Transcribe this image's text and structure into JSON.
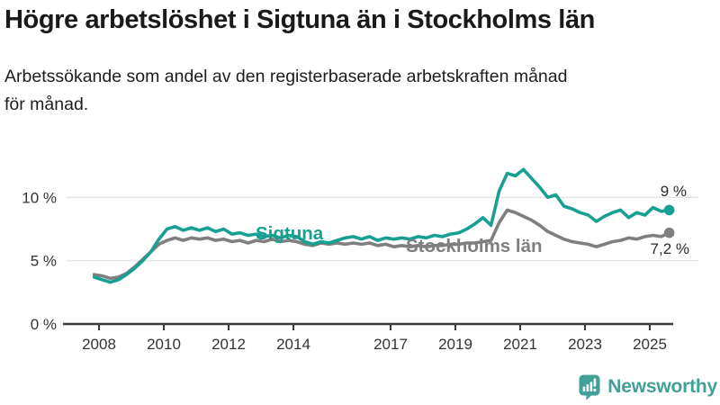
{
  "header": {
    "title": "Högre arbetslöshet i Sigtuna än i Stockholms län",
    "subtitle": "Arbetssökande som andel av den registerbaserade arbetskraften månad\nför månad."
  },
  "chart_data": {
    "type": "line",
    "title": "Högre arbetslöshet i Sigtuna än i Stockholms län",
    "subtitle": "Arbetssökande som andel av den registerbaserade arbetskraften månad för månad.",
    "unit": "%",
    "grid": "horizontal",
    "legend": "inline-labels",
    "x_start": 2007.85,
    "x_step": 0.25,
    "x_ticks": [
      2008,
      2010,
      2012,
      2014,
      2017,
      2019,
      2021,
      2023,
      2025
    ],
    "y_ticks": [
      {
        "value": 0,
        "label": "0 %"
      },
      {
        "value": 5,
        "label": "5 %"
      },
      {
        "value": 10,
        "label": "10 %"
      }
    ],
    "ylim": [
      0,
      13.5
    ],
    "series": [
      {
        "name": "Sigtuna",
        "color": "#17a092",
        "end_label": "9 %",
        "end_value": 9.0,
        "values": [
          3.7,
          3.5,
          3.3,
          3.5,
          3.9,
          4.4,
          5.0,
          5.7,
          6.7,
          7.5,
          7.7,
          7.4,
          7.6,
          7.4,
          7.6,
          7.3,
          7.5,
          7.1,
          7.2,
          7.0,
          7.1,
          6.9,
          7.0,
          6.8,
          7.0,
          6.9,
          6.5,
          6.3,
          6.5,
          6.4,
          6.6,
          6.8,
          6.9,
          6.7,
          6.9,
          6.6,
          6.8,
          6.7,
          6.8,
          6.7,
          6.9,
          6.8,
          7.0,
          6.9,
          7.1,
          7.2,
          7.5,
          7.9,
          8.4,
          7.8,
          10.5,
          11.9,
          11.7,
          12.2,
          11.5,
          10.8,
          10.0,
          10.2,
          9.3,
          9.1,
          8.8,
          8.6,
          8.1,
          8.5,
          8.8,
          9.0,
          8.4,
          8.8,
          8.6,
          9.2,
          8.9,
          9.0
        ]
      },
      {
        "name": "Stockholms län",
        "color": "#7f7f7f",
        "end_label": "7,2 %",
        "end_value": 7.2,
        "values": [
          3.9,
          3.8,
          3.6,
          3.7,
          4.0,
          4.5,
          5.1,
          5.7,
          6.3,
          6.6,
          6.8,
          6.6,
          6.8,
          6.7,
          6.8,
          6.6,
          6.7,
          6.5,
          6.6,
          6.4,
          6.6,
          6.5,
          6.7,
          6.5,
          6.6,
          6.5,
          6.3,
          6.2,
          6.4,
          6.3,
          6.4,
          6.3,
          6.4,
          6.3,
          6.4,
          6.2,
          6.3,
          6.1,
          6.2,
          6.1,
          6.2,
          6.1,
          6.2,
          6.2,
          6.3,
          6.3,
          6.4,
          6.4,
          6.5,
          6.6,
          8.0,
          9.0,
          8.8,
          8.5,
          8.2,
          7.8,
          7.3,
          7.0,
          6.7,
          6.5,
          6.4,
          6.3,
          6.1,
          6.3,
          6.5,
          6.6,
          6.8,
          6.7,
          6.9,
          7.0,
          6.9,
          7.2
        ]
      }
    ],
    "colors": {
      "grid": "#e4e4e4",
      "axis": "#3b3b3b",
      "tick_text": "#333333"
    }
  },
  "footer": {
    "brand": "Newsworthy",
    "brand_color": "#42a096",
    "logo_icon": "speech-bubble-bar-chart-icon"
  }
}
